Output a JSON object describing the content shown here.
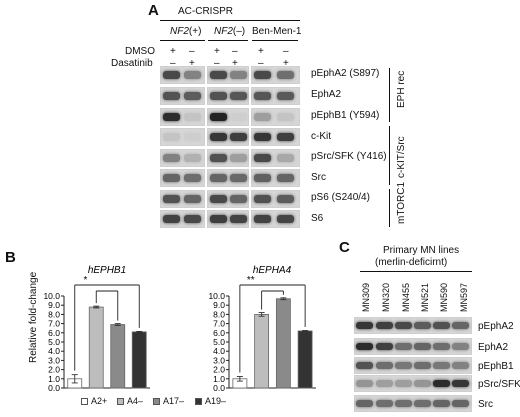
{
  "panelA": {
    "letter": "A",
    "header": "AC-CRISPR",
    "groups": [
      {
        "gene": "NF2",
        "genotype": "(+)"
      },
      {
        "gene": "NF2",
        "genotype": "(–)"
      },
      {
        "label": "Ben-Men-1"
      }
    ],
    "treatments": [
      {
        "label": "DMSO",
        "signs": [
          "+",
          "–",
          "+",
          "–",
          "+",
          "–"
        ]
      },
      {
        "label": "Dasatinib",
        "signs": [
          "–",
          "+",
          "–",
          "+",
          "–",
          "+"
        ]
      }
    ],
    "blots": [
      "pEphA2 (S897)",
      "EphA2",
      "pEphB1 (Y594)",
      "c-Kit",
      "pSrc/SFK (Y416)",
      "Src",
      "pS6 (S240/4)",
      "S6"
    ],
    "brackets": [
      "EPH rec",
      "c-KIT/Src",
      "mTORC1"
    ]
  },
  "panelB": {
    "letter": "B",
    "ylabel": "Relative fold-change",
    "legend": [
      "A2+",
      "A4–",
      "A17–",
      "A19–"
    ],
    "legend_colors": [
      "#ffffff",
      "#bdbdbd",
      "#8a8a8a",
      "#333333"
    ]
  },
  "chart_data": [
    {
      "type": "bar",
      "title": "hEPHB1",
      "categories": [
        "A2+",
        "A4–",
        "A17–",
        "A19–"
      ],
      "values": [
        1.0,
        8.8,
        6.9,
        6.1
      ],
      "errors": [
        0.45,
        0.1,
        0.1,
        0.05
      ],
      "ylabel": "Relative fold-change",
      "ylim": [
        0,
        10
      ],
      "yticks": [
        "0.0",
        "1.0",
        "2.0",
        "3.0",
        "4.0",
        "5.0",
        "6.0",
        "7.0",
        "8.0",
        "9.0",
        "10.0"
      ],
      "significance": "*"
    },
    {
      "type": "bar",
      "title": "hEPHA4",
      "categories": [
        "A2+",
        "A4–",
        "A17–",
        "A19–"
      ],
      "values": [
        1.0,
        8.0,
        9.7,
        6.2
      ],
      "errors": [
        0.25,
        0.2,
        0.1,
        0.05
      ],
      "ylim": [
        0,
        10
      ],
      "yticks": [
        "0.0",
        "1.0",
        "2.0",
        "3.0",
        "4.0",
        "5.0",
        "6.0",
        "7.0",
        "8.0",
        "9.0",
        "10.0"
      ],
      "significance": "**"
    }
  ],
  "panelC": {
    "letter": "C",
    "title_line1": "Primary MN lines",
    "title_line2": "(merlin-deficirnt)",
    "lines": [
      "MN309",
      "MN320",
      "MN455",
      "MN521",
      "MN590",
      "MN597"
    ],
    "blots": [
      "pEphA2",
      "EphA2",
      "pEphB1",
      "pSrc/SFK",
      "Src"
    ]
  }
}
